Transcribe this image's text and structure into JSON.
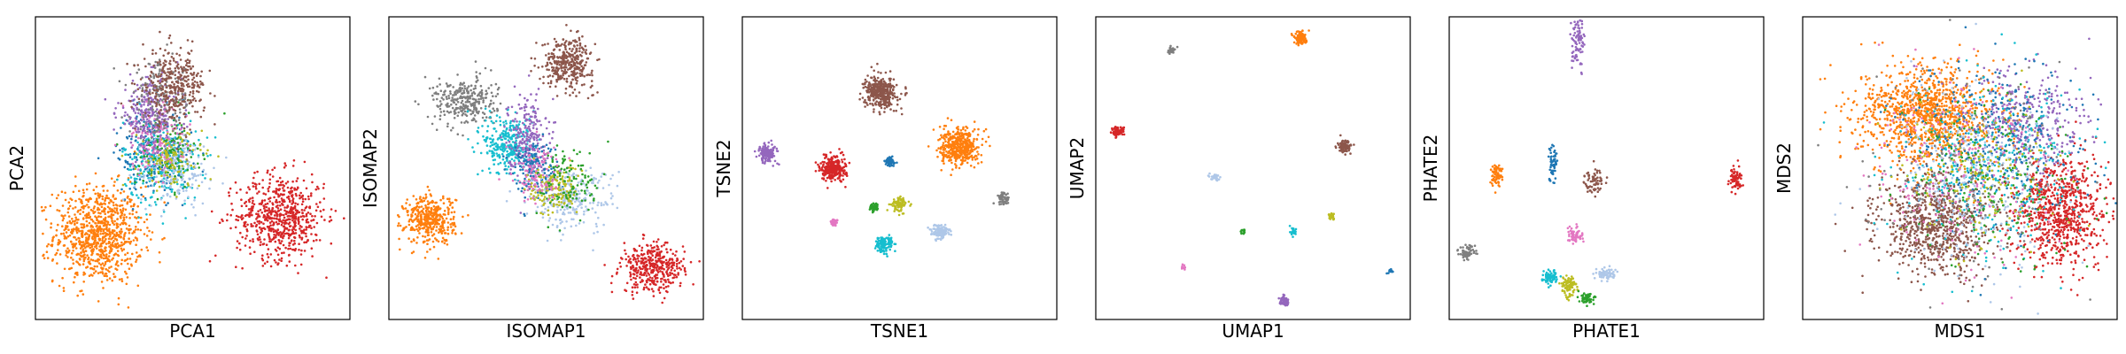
{
  "chart_data": [
    {
      "type": "scatter",
      "xlabel": "PCA1",
      "ylabel": "PCA2",
      "xlim": [
        0,
        1
      ],
      "ylim": [
        0,
        1
      ],
      "grid": false,
      "clusters": [
        {
          "color": "#ff7f0e",
          "center": [
            0.2,
            0.28
          ],
          "spread": [
            0.07,
            0.08
          ],
          "count": 900
        },
        {
          "color": "#d62728",
          "center": [
            0.78,
            0.34
          ],
          "spread": [
            0.07,
            0.07
          ],
          "count": 650
        },
        {
          "color": "#1f77b4",
          "center": [
            0.38,
            0.55
          ],
          "spread": [
            0.06,
            0.07
          ],
          "count": 250
        },
        {
          "color": "#17becf",
          "center": [
            0.4,
            0.52
          ],
          "spread": [
            0.06,
            0.07
          ],
          "count": 250
        },
        {
          "color": "#aec7e8",
          "center": [
            0.44,
            0.5
          ],
          "spread": [
            0.06,
            0.06
          ],
          "count": 200
        },
        {
          "color": "#2ca02c",
          "center": [
            0.42,
            0.55
          ],
          "spread": [
            0.05,
            0.06
          ],
          "count": 120
        },
        {
          "color": "#bcbd22",
          "center": [
            0.43,
            0.53
          ],
          "spread": [
            0.05,
            0.05
          ],
          "count": 120
        },
        {
          "color": "#e377c2",
          "center": [
            0.38,
            0.6
          ],
          "spread": [
            0.05,
            0.06
          ],
          "count": 120
        },
        {
          "color": "#9467bd",
          "center": [
            0.36,
            0.68
          ],
          "spread": [
            0.05,
            0.06
          ],
          "count": 250
        },
        {
          "color": "#7f7f7f",
          "center": [
            0.4,
            0.73
          ],
          "spread": [
            0.05,
            0.06
          ],
          "count": 150
        },
        {
          "color": "#8c564b",
          "center": [
            0.44,
            0.77
          ],
          "spread": [
            0.05,
            0.06
          ],
          "count": 350
        }
      ]
    },
    {
      "type": "scatter",
      "xlabel": "ISOMAP1",
      "ylabel": "ISOMAP2",
      "xlim": [
        0,
        1
      ],
      "ylim": [
        0,
        1
      ],
      "grid": false,
      "clusters": [
        {
          "color": "#ff7f0e",
          "center": [
            0.13,
            0.33
          ],
          "spread": [
            0.04,
            0.04
          ],
          "count": 400
        },
        {
          "color": "#d62728",
          "center": [
            0.84,
            0.17
          ],
          "spread": [
            0.05,
            0.04
          ],
          "count": 400
        },
        {
          "color": "#8c564b",
          "center": [
            0.57,
            0.85
          ],
          "spread": [
            0.04,
            0.04
          ],
          "count": 350
        },
        {
          "color": "#7f7f7f",
          "center": [
            0.24,
            0.72
          ],
          "spread": [
            0.05,
            0.04
          ],
          "count": 300
        },
        {
          "color": "#17becf",
          "center": [
            0.38,
            0.58
          ],
          "spread": [
            0.04,
            0.05
          ],
          "count": 300
        },
        {
          "color": "#9467bd",
          "center": [
            0.44,
            0.6
          ],
          "spread": [
            0.03,
            0.07
          ],
          "count": 250
        },
        {
          "color": "#1f77b4",
          "center": [
            0.46,
            0.5
          ],
          "spread": [
            0.04,
            0.05
          ],
          "count": 150
        },
        {
          "color": "#aec7e8",
          "center": [
            0.58,
            0.4
          ],
          "spread": [
            0.07,
            0.05
          ],
          "count": 250
        },
        {
          "color": "#bcbd22",
          "center": [
            0.52,
            0.43
          ],
          "spread": [
            0.04,
            0.04
          ],
          "count": 150
        },
        {
          "color": "#2ca02c",
          "center": [
            0.58,
            0.46
          ],
          "spread": [
            0.05,
            0.06
          ],
          "count": 120
        },
        {
          "color": "#e377c2",
          "center": [
            0.47,
            0.48
          ],
          "spread": [
            0.04,
            0.05
          ],
          "count": 100
        }
      ]
    },
    {
      "type": "scatter",
      "xlabel": "TSNE1",
      "ylabel": "TSNE2",
      "xlim": [
        0,
        1
      ],
      "ylim": [
        0,
        1
      ],
      "grid": false,
      "clusters": [
        {
          "color": "#8c564b",
          "center": [
            0.44,
            0.75
          ],
          "spread": [
            0.025,
            0.025
          ],
          "count": 400
        },
        {
          "color": "#ff7f0e",
          "center": [
            0.69,
            0.57
          ],
          "spread": [
            0.03,
            0.03
          ],
          "count": 450
        },
        {
          "color": "#d62728",
          "center": [
            0.29,
            0.5
          ],
          "spread": [
            0.02,
            0.02
          ],
          "count": 300
        },
        {
          "color": "#9467bd",
          "center": [
            0.08,
            0.55
          ],
          "spread": [
            0.015,
            0.015
          ],
          "count": 150
        },
        {
          "color": "#1f77b4",
          "center": [
            0.47,
            0.52
          ],
          "spread": [
            0.008,
            0.008
          ],
          "count": 60
        },
        {
          "color": "#7f7f7f",
          "center": [
            0.83,
            0.4
          ],
          "spread": [
            0.01,
            0.01
          ],
          "count": 60
        },
        {
          "color": "#2ca02c",
          "center": [
            0.42,
            0.37
          ],
          "spread": [
            0.007,
            0.007
          ],
          "count": 50
        },
        {
          "color": "#bcbd22",
          "center": [
            0.5,
            0.38
          ],
          "spread": [
            0.012,
            0.012
          ],
          "count": 90
        },
        {
          "color": "#e377c2",
          "center": [
            0.29,
            0.32
          ],
          "spread": [
            0.006,
            0.006
          ],
          "count": 40
        },
        {
          "color": "#aec7e8",
          "center": [
            0.63,
            0.29
          ],
          "spread": [
            0.015,
            0.012
          ],
          "count": 120
        },
        {
          "color": "#17becf",
          "center": [
            0.45,
            0.25
          ],
          "spread": [
            0.014,
            0.014
          ],
          "count": 120
        }
      ]
    },
    {
      "type": "scatter",
      "xlabel": "UMAP1",
      "ylabel": "UMAP2",
      "xlim": [
        0,
        1
      ],
      "ylim": [
        0,
        1
      ],
      "grid": false,
      "clusters": [
        {
          "color": "#ff7f0e",
          "center": [
            0.65,
            0.93
          ],
          "spread": [
            0.01,
            0.01
          ],
          "count": 120
        },
        {
          "color": "#7f7f7f",
          "center": [
            0.24,
            0.89
          ],
          "spread": [
            0.006,
            0.006
          ],
          "count": 30
        },
        {
          "color": "#d62728",
          "center": [
            0.07,
            0.62
          ],
          "spread": [
            0.01,
            0.008
          ],
          "count": 80
        },
        {
          "color": "#8c564b",
          "center": [
            0.79,
            0.57
          ],
          "spread": [
            0.01,
            0.01
          ],
          "count": 100
        },
        {
          "color": "#aec7e8",
          "center": [
            0.38,
            0.47
          ],
          "spread": [
            0.007,
            0.005
          ],
          "count": 40
        },
        {
          "color": "#bcbd22",
          "center": [
            0.75,
            0.34
          ],
          "spread": [
            0.006,
            0.005
          ],
          "count": 30
        },
        {
          "color": "#17becf",
          "center": [
            0.63,
            0.29
          ],
          "spread": [
            0.006,
            0.006
          ],
          "count": 30
        },
        {
          "color": "#2ca02c",
          "center": [
            0.47,
            0.29
          ],
          "spread": [
            0.004,
            0.004
          ],
          "count": 15
        },
        {
          "color": "#e377c2",
          "center": [
            0.28,
            0.17
          ],
          "spread": [
            0.004,
            0.004
          ],
          "count": 12
        },
        {
          "color": "#1f77b4",
          "center": [
            0.94,
            0.16
          ],
          "spread": [
            0.005,
            0.004
          ],
          "count": 15
        },
        {
          "color": "#9467bd",
          "center": [
            0.6,
            0.06
          ],
          "spread": [
            0.008,
            0.008
          ],
          "count": 50
        }
      ]
    },
    {
      "type": "scatter",
      "xlabel": "PHATE1",
      "ylabel": "PHATE2",
      "xlim": [
        0,
        1
      ],
      "ylim": [
        0,
        1
      ],
      "grid": false,
      "clusters": [
        {
          "color": "#9467bd",
          "center": [
            0.41,
            0.91
          ],
          "spread": [
            0.01,
            0.04
          ],
          "count": 90
        },
        {
          "color": "#ff7f0e",
          "center": [
            0.15,
            0.48
          ],
          "spread": [
            0.01,
            0.02
          ],
          "count": 70
        },
        {
          "color": "#1f77b4",
          "center": [
            0.33,
            0.52
          ],
          "spread": [
            0.008,
            0.03
          ],
          "count": 60
        },
        {
          "color": "#8c564b",
          "center": [
            0.46,
            0.46
          ],
          "spread": [
            0.015,
            0.02
          ],
          "count": 70
        },
        {
          "color": "#d62728",
          "center": [
            0.91,
            0.46
          ],
          "spread": [
            0.01,
            0.02
          ],
          "count": 70
        },
        {
          "color": "#e377c2",
          "center": [
            0.4,
            0.28
          ],
          "spread": [
            0.012,
            0.015
          ],
          "count": 60
        },
        {
          "color": "#7f7f7f",
          "center": [
            0.06,
            0.22
          ],
          "spread": [
            0.015,
            0.012
          ],
          "count": 70
        },
        {
          "color": "#17becf",
          "center": [
            0.32,
            0.14
          ],
          "spread": [
            0.012,
            0.012
          ],
          "count": 80
        },
        {
          "color": "#bcbd22",
          "center": [
            0.38,
            0.11
          ],
          "spread": [
            0.012,
            0.015
          ],
          "count": 100
        },
        {
          "color": "#aec7e8",
          "center": [
            0.5,
            0.15
          ],
          "spread": [
            0.015,
            0.01
          ],
          "count": 70
        },
        {
          "color": "#2ca02c",
          "center": [
            0.44,
            0.07
          ],
          "spread": [
            0.012,
            0.01
          ],
          "count": 60
        }
      ]
    },
    {
      "type": "scatter",
      "xlabel": "MDS1",
      "ylabel": "MDS2",
      "xlim": [
        0,
        1
      ],
      "ylim": [
        0,
        1
      ],
      "grid": false,
      "clusters": [
        {
          "color": "#ff7f0e",
          "center": [
            0.4,
            0.68
          ],
          "spread": [
            0.11,
            0.08
          ],
          "count": 1100
        },
        {
          "color": "#8c564b",
          "center": [
            0.42,
            0.31
          ],
          "spread": [
            0.09,
            0.08
          ],
          "count": 800
        },
        {
          "color": "#d62728",
          "center": [
            0.82,
            0.36
          ],
          "spread": [
            0.07,
            0.09
          ],
          "count": 800
        },
        {
          "color": "#9467bd",
          "center": [
            0.7,
            0.65
          ],
          "spread": [
            0.1,
            0.09
          ],
          "count": 350
        },
        {
          "color": "#1f77b4",
          "center": [
            0.62,
            0.56
          ],
          "spread": [
            0.14,
            0.14
          ],
          "count": 350
        },
        {
          "color": "#17becf",
          "center": [
            0.6,
            0.5
          ],
          "spread": [
            0.15,
            0.15
          ],
          "count": 300
        },
        {
          "color": "#aec7e8",
          "center": [
            0.55,
            0.47
          ],
          "spread": [
            0.15,
            0.15
          ],
          "count": 300
        },
        {
          "color": "#2ca02c",
          "center": [
            0.6,
            0.45
          ],
          "spread": [
            0.14,
            0.14
          ],
          "count": 200
        },
        {
          "color": "#bcbd22",
          "center": [
            0.58,
            0.48
          ],
          "spread": [
            0.12,
            0.12
          ],
          "count": 200
        },
        {
          "color": "#e377c2",
          "center": [
            0.5,
            0.5
          ],
          "spread": [
            0.16,
            0.16
          ],
          "count": 200
        },
        {
          "color": "#7f7f7f",
          "center": [
            0.52,
            0.5
          ],
          "spread": [
            0.16,
            0.16
          ],
          "count": 150
        }
      ]
    }
  ]
}
